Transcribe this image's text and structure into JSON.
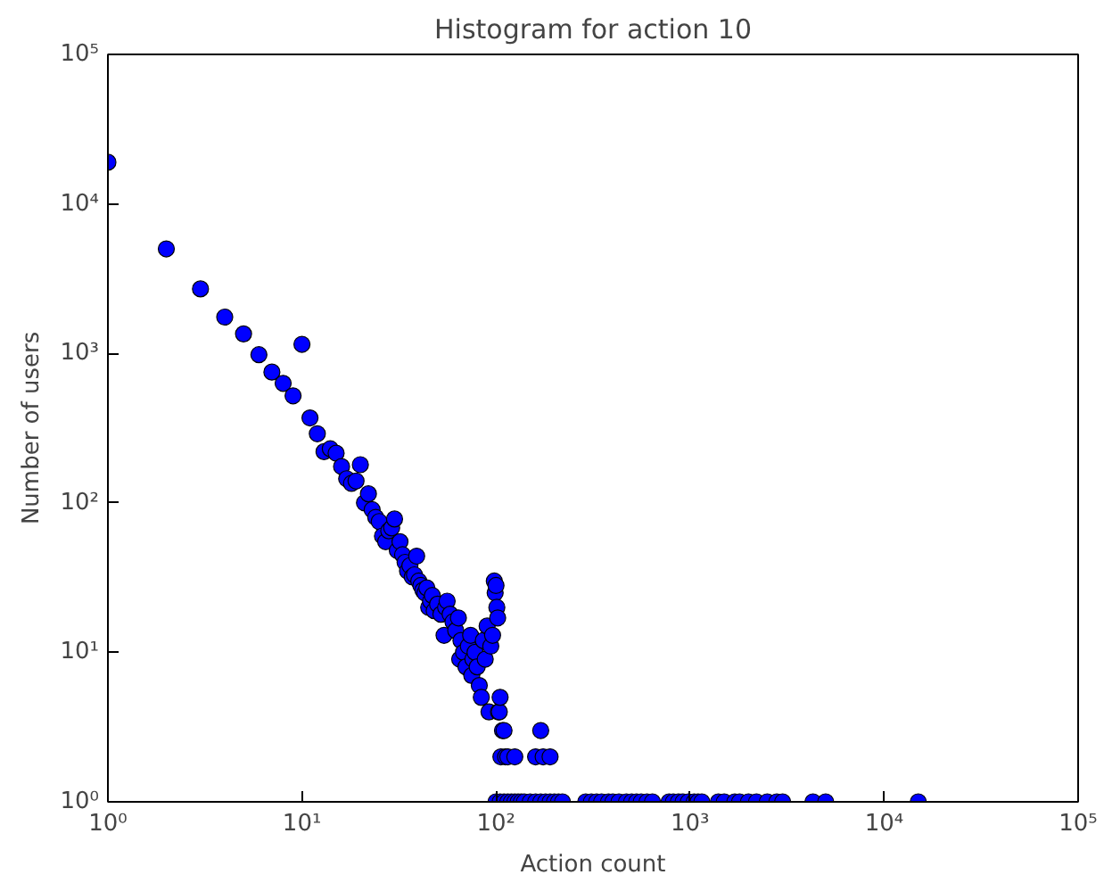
{
  "chart_data": {
    "type": "scatter",
    "title": "Histogram for action 10",
    "xlabel": "Action count",
    "ylabel": "Number of users",
    "log": "xy",
    "grid": false,
    "marker": "circle",
    "xlim": [
      1,
      100000
    ],
    "ylim": [
      1,
      100000
    ],
    "xticks": [
      {
        "value": 1,
        "label": "10⁰"
      },
      {
        "value": 10,
        "label": "10¹"
      },
      {
        "value": 100,
        "label": "10²"
      },
      {
        "value": 1000,
        "label": "10³"
      },
      {
        "value": 10000,
        "label": "10⁴"
      },
      {
        "value": 100000,
        "label": "10⁵"
      }
    ],
    "yticks": [
      {
        "value": 1,
        "label": "10⁰"
      },
      {
        "value": 10,
        "label": "10¹"
      },
      {
        "value": 100,
        "label": "10²"
      },
      {
        "value": 1000,
        "label": "10³"
      },
      {
        "value": 10000,
        "label": "10⁴"
      },
      {
        "value": 100000,
        "label": "10⁵"
      }
    ],
    "series": [
      {
        "color": "#0000ff",
        "x": [
          1,
          2,
          3,
          4,
          5,
          6,
          7,
          8,
          9,
          10,
          11,
          12,
          13,
          14,
          15,
          16,
          17,
          18,
          19,
          20,
          21,
          22,
          23,
          24,
          25,
          26,
          27,
          28,
          29,
          30,
          31,
          32,
          33,
          34,
          35,
          36,
          37,
          38,
          39,
          40,
          41,
          42,
          43,
          44,
          45,
          46,
          47,
          48,
          50,
          52,
          54,
          55,
          56,
          58,
          60,
          62,
          64,
          65,
          66,
          68,
          70,
          72,
          74,
          75,
          76,
          78,
          80,
          82,
          84,
          86,
          88,
          90,
          92,
          94,
          96,
          98,
          99,
          100,
          101,
          102,
          103,
          104,
          105,
          106,
          108,
          110,
          112,
          115,
          125,
          160,
          170,
          175,
          190,
          100,
          105,
          110,
          115,
          120,
          125,
          130,
          135,
          140,
          150,
          160,
          170,
          180,
          190,
          200,
          210,
          220,
          290,
          310,
          330,
          350,
          380,
          400,
          430,
          470,
          500,
          530,
          560,
          600,
          640,
          780,
          820,
          870,
          920,
          980,
          1050,
          1100,
          1150,
          1400,
          1500,
          1700,
          1800,
          2000,
          2200,
          2500,
          2800,
          3000,
          4300,
          5000,
          15000
        ],
        "values": [
          19000,
          5000,
          2700,
          1750,
          1350,
          980,
          750,
          630,
          520,
          1150,
          370,
          290,
          220,
          230,
          215,
          175,
          145,
          135,
          140,
          180,
          100,
          115,
          90,
          80,
          75,
          60,
          55,
          65,
          68,
          78,
          48,
          55,
          45,
          40,
          35,
          38,
          32,
          33,
          44,
          30,
          28,
          26,
          25,
          27,
          20,
          22,
          24,
          19,
          21,
          18,
          13,
          20,
          22,
          18,
          16,
          14,
          17,
          9,
          12,
          10,
          8,
          11,
          13,
          7,
          9,
          10,
          8,
          6,
          5,
          12,
          9,
          15,
          4,
          11,
          13,
          30,
          25,
          28,
          20,
          17,
          4,
          4,
          5,
          2,
          3,
          3,
          2,
          2,
          2,
          2,
          3,
          2,
          2,
          1,
          1,
          1,
          1,
          1,
          1,
          1,
          1,
          1,
          1,
          1,
          1,
          1,
          1,
          1,
          1,
          1,
          1,
          1,
          1,
          1,
          1,
          1,
          1,
          1,
          1,
          1,
          1,
          1,
          1,
          1,
          1,
          1,
          1,
          1,
          1,
          1,
          1,
          1,
          1,
          1,
          1,
          1,
          1,
          1,
          1,
          1,
          1,
          1,
          1
        ]
      }
    ]
  }
}
